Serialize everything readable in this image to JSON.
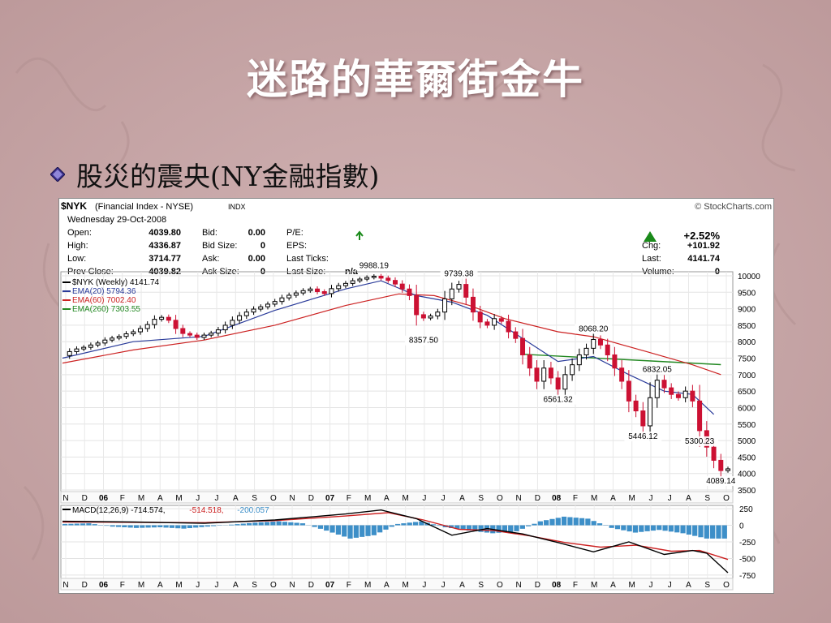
{
  "slide": {
    "title": "迷路的華爾街金牛",
    "bullet": "股災的震央(NY金融指數)"
  },
  "colors": {
    "background": "#c9a9aa",
    "up_candle": "#000000",
    "down_candle": "#cc1133",
    "ema20": "#2a3b9a",
    "ema60": "#cc2222",
    "ema260": "#228822",
    "macd_hist": "#3d8fc8",
    "macd_line": "#000000",
    "signal_line": "#cc2222"
  },
  "header": {
    "symbol": "$NYK",
    "name": "(Financial Index - NYSE)",
    "exchange": "INDX",
    "brand": "© StockCharts.com",
    "date": "Wednesday  29-Oct-2008",
    "quote_rows": [
      {
        "l1": "Open:",
        "v1": "4039.80",
        "l2": "Bid:",
        "v2": "0.00",
        "l3": "P/E:",
        "v3": ""
      },
      {
        "l1": "High:",
        "v1": "4336.87",
        "l2": "Bid Size:",
        "v2": "0",
        "l3": "EPS:",
        "v3": ""
      },
      {
        "l1": "Low:",
        "v1": "3714.77",
        "l2": "Ask:",
        "v2": "0.00",
        "l3": "Last Ticks:",
        "v3": ""
      },
      {
        "l1": "Prev Close:",
        "v1": "4039.82",
        "l2": "Ask Size:",
        "v2": "0",
        "l3": "Last Size:",
        "v3": "n/a"
      }
    ],
    "change_pct": "+2.52%",
    "right_rows": [
      {
        "l": "Chg:",
        "v": "+101.92"
      },
      {
        "l": "Last:",
        "v": "4141.74"
      },
      {
        "l": "Volume:",
        "v": "0"
      }
    ]
  },
  "chart_data": [
    {
      "type": "line",
      "subtype": "candlestick",
      "legend": [
        {
          "name": "$NYK (Weekly) 4141.74",
          "color": "#000000"
        },
        {
          "name": "EMA(20) 5794.36",
          "color": "#2a3b9a"
        },
        {
          "name": "EMA(60) 7002.40",
          "color": "#cc2222"
        },
        {
          "name": "EMA(260) 7303.55",
          "color": "#228822"
        }
      ],
      "ylim": [
        3500,
        10000
      ],
      "y_ticks": [
        3500,
        4000,
        4500,
        5000,
        5500,
        6000,
        6500,
        7000,
        7500,
        8000,
        8500,
        9000,
        9500,
        10000
      ],
      "x_ticks": [
        "N",
        "D",
        "06",
        "F",
        "M",
        "A",
        "M",
        "J",
        "J",
        "A",
        "S",
        "O",
        "N",
        "D",
        "07",
        "F",
        "M",
        "A",
        "M",
        "J",
        "J",
        "A",
        "S",
        "O",
        "N",
        "D",
        "08",
        "F",
        "M",
        "A",
        "M",
        "J",
        "J",
        "A",
        "S",
        "O"
      ],
      "x_range": [
        "2005-11",
        "2008-10"
      ],
      "price_path": [
        [
          0,
          7580
        ],
        [
          2,
          7700
        ],
        [
          4,
          7780
        ],
        [
          6,
          7830
        ],
        [
          8,
          7900
        ],
        [
          10,
          7960
        ],
        [
          12,
          8050
        ],
        [
          14,
          8110
        ],
        [
          16,
          8160
        ],
        [
          18,
          8240
        ],
        [
          20,
          8300
        ],
        [
          22,
          8400
        ],
        [
          24,
          8520
        ],
        [
          26,
          8680
        ],
        [
          28,
          8740
        ],
        [
          30,
          8650
        ],
        [
          32,
          8400
        ],
        [
          34,
          8250
        ],
        [
          36,
          8200
        ],
        [
          38,
          8130
        ],
        [
          40,
          8200
        ],
        [
          42,
          8260
        ],
        [
          44,
          8360
        ],
        [
          46,
          8500
        ],
        [
          48,
          8650
        ],
        [
          50,
          8790
        ],
        [
          52,
          8900
        ],
        [
          54,
          8990
        ],
        [
          56,
          9060
        ],
        [
          58,
          9140
        ],
        [
          60,
          9220
        ],
        [
          62,
          9330
        ],
        [
          64,
          9410
        ],
        [
          66,
          9480
        ],
        [
          68,
          9550
        ],
        [
          70,
          9600
        ],
        [
          72,
          9520
        ],
        [
          74,
          9460
        ],
        [
          76,
          9610
        ],
        [
          78,
          9700
        ],
        [
          80,
          9770
        ],
        [
          82,
          9850
        ],
        [
          84,
          9900
        ],
        [
          86,
          9950
        ],
        [
          88,
          9988
        ],
        [
          90,
          9930
        ],
        [
          92,
          9860
        ],
        [
          94,
          9750
        ],
        [
          96,
          9600
        ],
        [
          98,
          9400
        ],
        [
          100,
          8820
        ],
        [
          102,
          8720
        ],
        [
          104,
          8780
        ],
        [
          106,
          8900
        ],
        [
          108,
          9300
        ],
        [
          110,
          9600
        ],
        [
          112,
          9739
        ],
        [
          114,
          9350
        ],
        [
          116,
          8900
        ],
        [
          118,
          8600
        ],
        [
          120,
          8500
        ],
        [
          122,
          8700
        ],
        [
          124,
          8620
        ],
        [
          126,
          8300
        ],
        [
          128,
          8100
        ],
        [
          130,
          7600
        ],
        [
          132,
          7200
        ],
        [
          134,
          6800
        ],
        [
          136,
          7200
        ],
        [
          138,
          6900
        ],
        [
          140,
          6561
        ],
        [
          142,
          7000
        ],
        [
          144,
          7300
        ],
        [
          146,
          7600
        ],
        [
          148,
          7800
        ],
        [
          150,
          8068
        ],
        [
          152,
          7900
        ],
        [
          154,
          7600
        ],
        [
          156,
          7200
        ],
        [
          158,
          6800
        ],
        [
          160,
          6200
        ],
        [
          162,
          5900
        ],
        [
          164,
          5446
        ],
        [
          166,
          6300
        ],
        [
          168,
          6832
        ],
        [
          170,
          6600
        ],
        [
          172,
          6400
        ],
        [
          174,
          6300
        ],
        [
          176,
          6500
        ],
        [
          178,
          6200
        ],
        [
          180,
          5300
        ],
        [
          182,
          4800
        ],
        [
          184,
          4400
        ],
        [
          186,
          4089
        ],
        [
          188,
          4141
        ]
      ],
      "ema20_path": [
        [
          0,
          7500
        ],
        [
          20,
          8000
        ],
        [
          40,
          8160
        ],
        [
          60,
          8950
        ],
        [
          80,
          9600
        ],
        [
          90,
          9850
        ],
        [
          100,
          9400
        ],
        [
          110,
          9200
        ],
        [
          120,
          8800
        ],
        [
          130,
          8100
        ],
        [
          140,
          7400
        ],
        [
          150,
          7550
        ],
        [
          160,
          7000
        ],
        [
          170,
          6500
        ],
        [
          178,
          6400
        ],
        [
          184,
          5794
        ]
      ],
      "ema60_path": [
        [
          0,
          7350
        ],
        [
          20,
          7750
        ],
        [
          40,
          8050
        ],
        [
          60,
          8500
        ],
        [
          80,
          9100
        ],
        [
          95,
          9450
        ],
        [
          105,
          9400
        ],
        [
          115,
          9100
        ],
        [
          125,
          8700
        ],
        [
          140,
          8300
        ],
        [
          150,
          8150
        ],
        [
          165,
          7700
        ],
        [
          178,
          7300
        ],
        [
          186,
          7002
        ]
      ],
      "ema260_path": [
        [
          130,
          7620
        ],
        [
          186,
          7303
        ]
      ],
      "annotations": [
        {
          "label": "9988.19",
          "x": 88,
          "y": 9988
        },
        {
          "label": "9739.38",
          "x": 112,
          "y": 9739
        },
        {
          "label": "8357.50",
          "x": 102,
          "y": 8357
        },
        {
          "label": "8068.20",
          "x": 150,
          "y": 8068
        },
        {
          "label": "6832.05",
          "x": 168,
          "y": 6832
        },
        {
          "label": "6561.32",
          "x": 140,
          "y": 6561
        },
        {
          "label": "5300.23",
          "x": 180,
          "y": 5300
        },
        {
          "label": "5446.12",
          "x": 164,
          "y": 5446
        },
        {
          "label": "4089.14",
          "x": 186,
          "y": 4089
        }
      ]
    },
    {
      "type": "line",
      "subtype": "macd",
      "legend": [
        {
          "name": "MACD(12,26,9)",
          "value": "-714.574",
          "color": "#000000"
        },
        {
          "name": "",
          "value": "-514.518",
          "color": "#cc2222"
        },
        {
          "name": "",
          "value": "-200.057",
          "color": "#3d8fc8"
        }
      ],
      "ylim": [
        -800,
        300
      ],
      "y_ticks": [
        250,
        0,
        -250,
        -500,
        -750
      ],
      "macd_path": [
        [
          0,
          60
        ],
        [
          20,
          50
        ],
        [
          40,
          30
        ],
        [
          60,
          80
        ],
        [
          80,
          170
        ],
        [
          90,
          230
        ],
        [
          100,
          100
        ],
        [
          110,
          -150
        ],
        [
          120,
          -50
        ],
        [
          130,
          -130
        ],
        [
          140,
          -260
        ],
        [
          150,
          -400
        ],
        [
          160,
          -250
        ],
        [
          170,
          -440
        ],
        [
          178,
          -380
        ],
        [
          182,
          -420
        ],
        [
          188,
          -715
        ]
      ],
      "signal_path": [
        [
          0,
          50
        ],
        [
          20,
          45
        ],
        [
          40,
          40
        ],
        [
          60,
          70
        ],
        [
          80,
          140
        ],
        [
          92,
          190
        ],
        [
          102,
          80
        ],
        [
          112,
          -60
        ],
        [
          122,
          -80
        ],
        [
          132,
          -160
        ],
        [
          142,
          -260
        ],
        [
          152,
          -330
        ],
        [
          162,
          -300
        ],
        [
          172,
          -390
        ],
        [
          180,
          -380
        ],
        [
          188,
          -515
        ]
      ],
      "hist": [
        20,
        30,
        -20,
        -40,
        -30,
        -50,
        -20,
        10,
        40,
        60,
        30,
        -80,
        -200,
        -150,
        20,
        60,
        -30,
        -80,
        -120,
        -90,
        60,
        130,
        100,
        -40,
        -110,
        -70,
        -120,
        -200
      ]
    }
  ]
}
